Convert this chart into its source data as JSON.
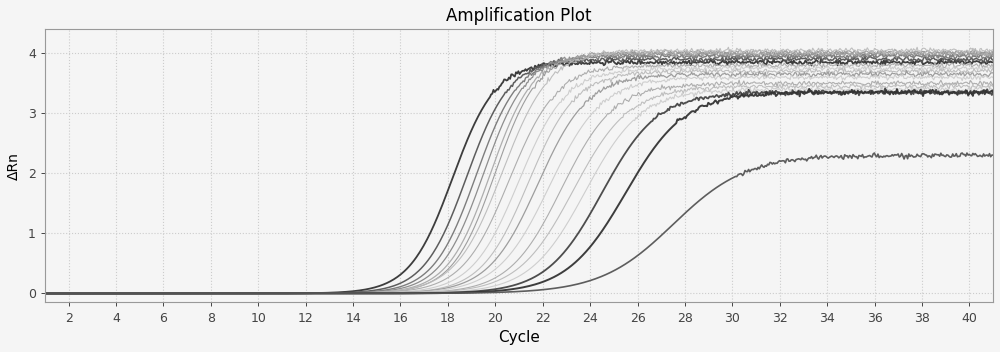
{
  "title": "Amplification Plot",
  "xlabel": "Cycle",
  "ylabel": "ΔRn",
  "xlim": [
    1,
    41
  ],
  "ylim": [
    -0.15,
    4.4
  ],
  "xticks": [
    2,
    4,
    6,
    8,
    10,
    12,
    14,
    16,
    18,
    20,
    22,
    24,
    26,
    28,
    30,
    32,
    34,
    36,
    38,
    40
  ],
  "yticks": [
    0,
    1,
    2,
    3,
    4
  ],
  "background": "#f5f5f5",
  "grid_color": "#cccccc",
  "curves": [
    {
      "midpoint": 18.2,
      "plateau": 3.85,
      "steepness": 1.1,
      "color": "#333333",
      "lw": 1.3
    },
    {
      "midpoint": 18.8,
      "plateau": 3.9,
      "steepness": 1.1,
      "color": "#555555",
      "lw": 1.1
    },
    {
      "midpoint": 19.2,
      "plateau": 3.95,
      "steepness": 1.1,
      "color": "#777777",
      "lw": 1.0
    },
    {
      "midpoint": 19.5,
      "plateau": 3.98,
      "steepness": 1.1,
      "color": "#888888",
      "lw": 0.9
    },
    {
      "midpoint": 19.8,
      "plateau": 4.0,
      "steepness": 1.1,
      "color": "#aaaaaa",
      "lw": 0.9
    },
    {
      "midpoint": 20.0,
      "plateau": 4.02,
      "steepness": 1.1,
      "color": "#999999",
      "lw": 0.8
    },
    {
      "midpoint": 20.3,
      "plateau": 4.05,
      "steepness": 1.0,
      "color": "#bbbbbb",
      "lw": 0.8
    },
    {
      "midpoint": 20.6,
      "plateau": 3.8,
      "steepness": 1.0,
      "color": "#aaaaaa",
      "lw": 0.8
    },
    {
      "midpoint": 21.0,
      "plateau": 3.75,
      "steepness": 1.0,
      "color": "#cccccc",
      "lw": 0.8
    },
    {
      "midpoint": 21.4,
      "plateau": 3.7,
      "steepness": 1.0,
      "color": "#bbbbbb",
      "lw": 0.8
    },
    {
      "midpoint": 21.8,
      "plateau": 3.65,
      "steepness": 0.95,
      "color": "#999999",
      "lw": 0.9
    },
    {
      "midpoint": 22.3,
      "plateau": 3.6,
      "steepness": 0.9,
      "color": "#cccccc",
      "lw": 0.8
    },
    {
      "midpoint": 22.8,
      "plateau": 3.5,
      "steepness": 0.9,
      "color": "#aaaaaa",
      "lw": 0.8
    },
    {
      "midpoint": 23.3,
      "plateau": 3.45,
      "steepness": 0.85,
      "color": "#bbbbbb",
      "lw": 0.8
    },
    {
      "midpoint": 23.8,
      "plateau": 3.4,
      "steepness": 0.85,
      "color": "#cccccc",
      "lw": 0.8
    },
    {
      "midpoint": 24.5,
      "plateau": 3.35,
      "steepness": 0.85,
      "color": "#444444",
      "lw": 1.3
    },
    {
      "midpoint": 25.5,
      "plateau": 3.35,
      "steepness": 0.8,
      "color": "#333333",
      "lw": 1.4
    },
    {
      "midpoint": 27.5,
      "plateau": 2.3,
      "steepness": 0.65,
      "color": "#555555",
      "lw": 1.2
    }
  ]
}
